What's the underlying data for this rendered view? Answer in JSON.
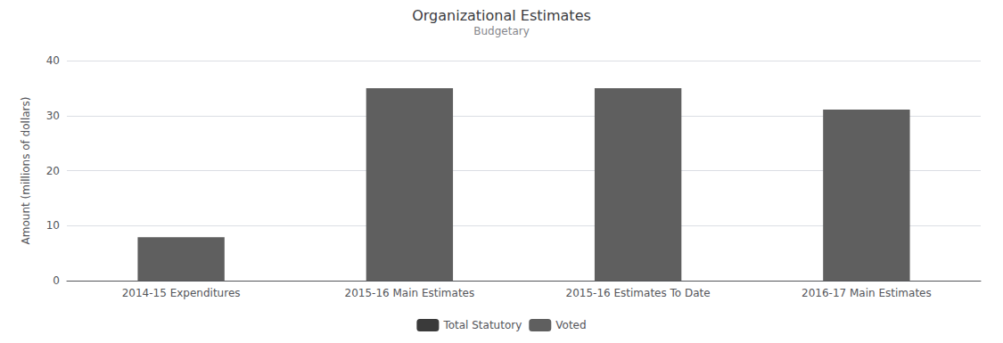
{
  "chart_data": {
    "type": "bar",
    "title": "Organizational Estimates",
    "subtitle": "Budgetary",
    "categories": [
      "2014-15 Expenditures",
      "2015-16 Main Estimates",
      "2015-16 Estimates To Date",
      "2016-17 Main Estimates"
    ],
    "series": [
      {
        "name": "Total Statutory",
        "color": "#3a3a3a",
        "values": [
          null,
          null,
          null,
          null
        ]
      },
      {
        "name": "Voted",
        "color": "#5f5f5f",
        "values": [
          7.9,
          35.0,
          35.0,
          31.1
        ]
      }
    ],
    "ylabel": "Amount (millions of dollars)",
    "ylim": [
      0,
      40
    ],
    "yticks": [
      0,
      10,
      20,
      30,
      40
    ],
    "grid": true,
    "legend": "bottom"
  }
}
